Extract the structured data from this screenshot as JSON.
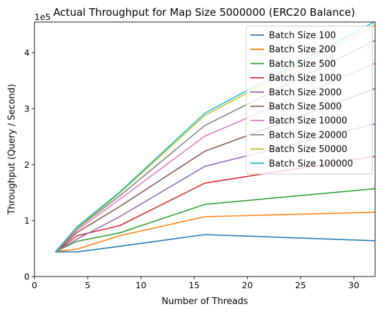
{
  "chart_data": {
    "type": "line",
    "title": "Actual Throughput for Map Size 5000000 (ERC20 Balance)",
    "xlabel": "Number of Threads",
    "ylabel": "Throughput (Query / Second)",
    "y_offset_label": "1e5",
    "xlim": [
      0,
      32
    ],
    "ylim": [
      0,
      4.55
    ],
    "x_ticks": [
      0,
      5,
      10,
      15,
      20,
      25,
      30
    ],
    "y_ticks": [
      0,
      1,
      2,
      3,
      4
    ],
    "grid": false,
    "legend_position": "top-right",
    "x": [
      2,
      4,
      8,
      16,
      32
    ],
    "series": [
      {
        "name": "Batch Size 100",
        "color": "#1f77b4",
        "values": [
          0.44,
          0.44,
          0.54,
          0.75,
          0.64
        ]
      },
      {
        "name": "Batch Size 200",
        "color": "#ff7f0e",
        "values": [
          0.45,
          0.49,
          0.73,
          1.07,
          1.15
        ]
      },
      {
        "name": "Batch Size 500",
        "color": "#2ca02c",
        "values": [
          0.45,
          0.63,
          0.78,
          1.29,
          1.57
        ]
      },
      {
        "name": "Batch Size 1000",
        "color": "#d62728",
        "values": [
          0.45,
          0.73,
          0.91,
          1.67,
          2.15
        ]
      },
      {
        "name": "Batch Size 2000",
        "color": "#9467bd",
        "values": [
          0.45,
          0.67,
          1.07,
          1.97,
          2.73
        ]
      },
      {
        "name": "Batch Size 5000",
        "color": "#8c564b",
        "values": [
          0.45,
          0.79,
          1.25,
          2.24,
          3.36
        ]
      },
      {
        "name": "Batch Size 10000",
        "color": "#e377c2",
        "values": [
          0.45,
          0.83,
          1.38,
          2.51,
          3.81
        ]
      },
      {
        "name": "Batch Size 20000",
        "color": "#7f7f7f",
        "values": [
          0.45,
          0.86,
          1.44,
          2.7,
          4.22
        ]
      },
      {
        "name": "Batch Size 50000",
        "color": "#bcbd22",
        "values": [
          0.45,
          0.87,
          1.49,
          2.88,
          4.5
        ]
      },
      {
        "name": "Batch Size 100000",
        "color": "#17becf",
        "values": [
          0.45,
          0.89,
          1.51,
          2.92,
          4.56
        ]
      }
    ]
  }
}
